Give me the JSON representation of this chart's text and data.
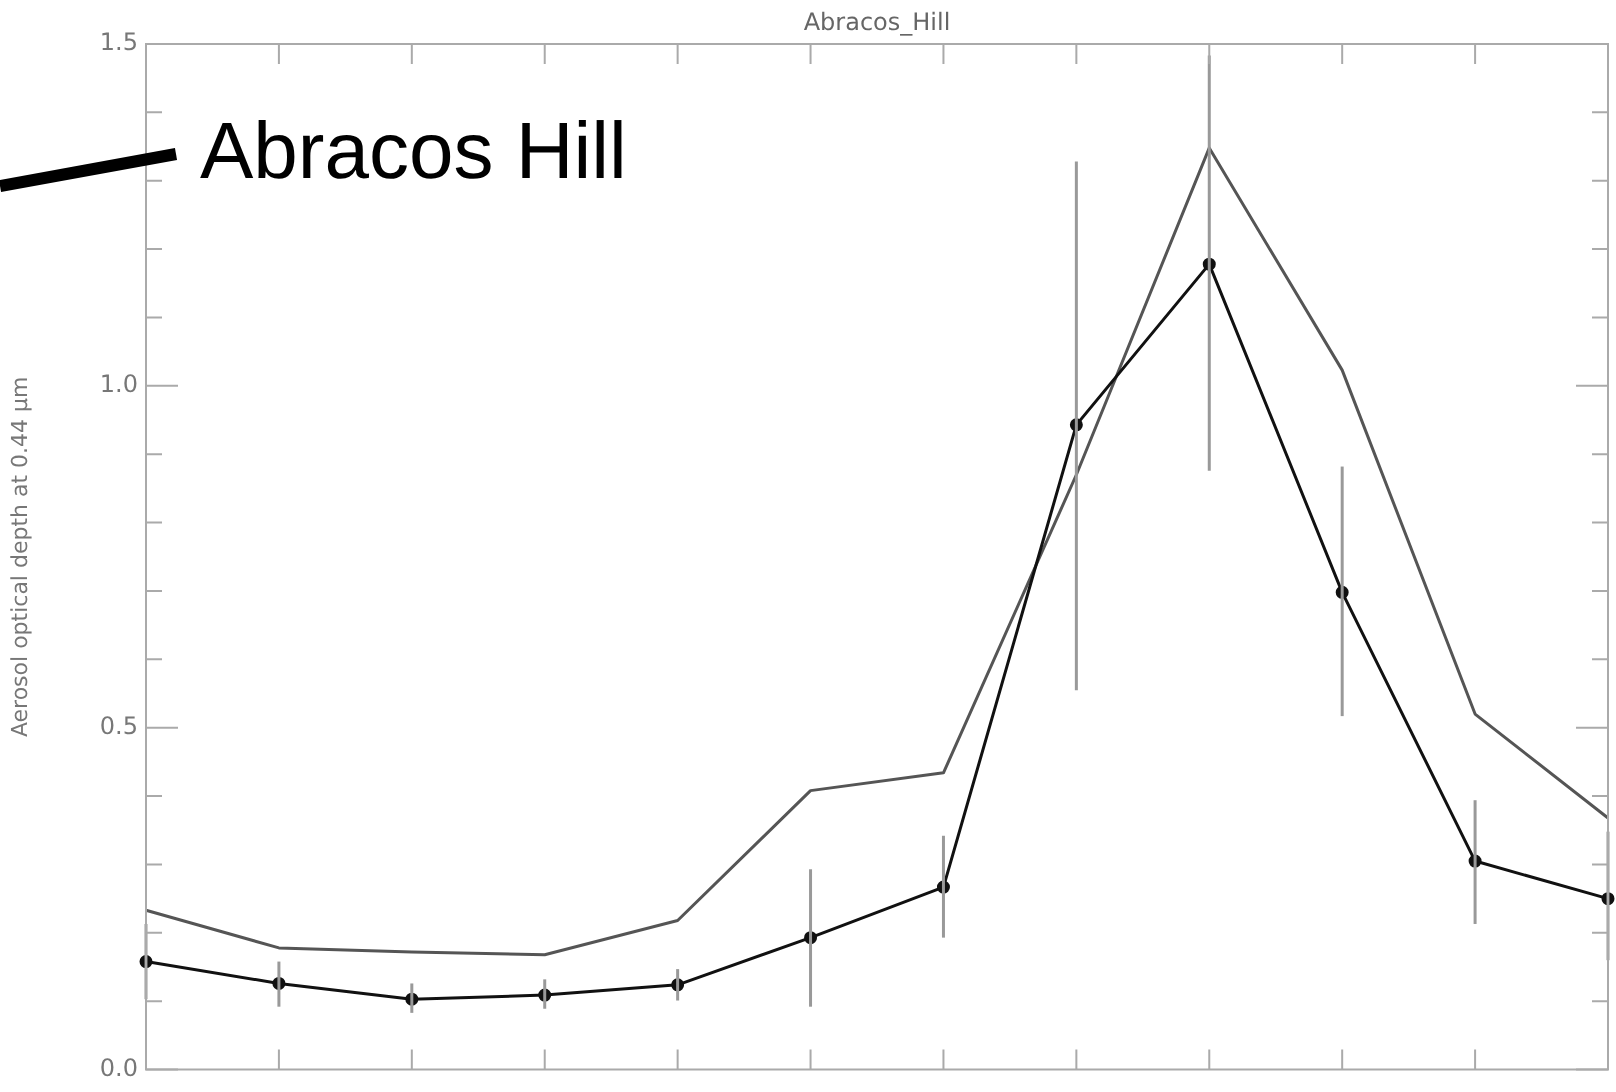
{
  "chart_data": {
    "type": "line",
    "title": "Abracos_Hill",
    "ylabel": "Aerosol optical depth at 0.44 μm",
    "annotations": [
      "Abracos Hill"
    ],
    "categories": [
      null,
      null,
      null,
      null,
      null,
      null,
      null,
      null,
      null,
      null,
      null,
      null
    ],
    "series": [
      {
        "color": "#111111",
        "marker": "circle",
        "values": [
          0.158,
          0.126,
          0.103,
          0.109,
          0.124,
          0.193,
          0.267,
          0.943,
          1.178,
          0.698,
          0.305,
          0.25
        ],
        "errors": [
          [
            0.103,
            0.213
          ],
          [
            0.092,
            0.158
          ],
          [
            0.083,
            0.126
          ],
          [
            0.089,
            0.132
          ],
          [
            0.101,
            0.147
          ],
          [
            0.092,
            0.293
          ],
          [
            0.193,
            0.342
          ],
          [
            0.555,
            1.328
          ],
          [
            0.876,
            1.483
          ],
          [
            0.517,
            0.882
          ],
          [
            0.213,
            0.394
          ],
          [
            0.16,
            0.348
          ]
        ]
      },
      {
        "color": "#555555",
        "marker": "none",
        "values": [
          0.233,
          0.178,
          0.172,
          0.168,
          0.218,
          0.408,
          0.434,
          0.87,
          1.348,
          1.023,
          0.52,
          0.368
        ]
      }
    ],
    "ylim": [
      0,
      1.5
    ],
    "yticks": [
      {
        "value": 0,
        "label": "0.0"
      },
      {
        "value": 0.1,
        "label": null
      },
      {
        "value": 0.2,
        "label": null
      },
      {
        "value": 0.3,
        "label": null
      },
      {
        "value": 0.4,
        "label": null
      },
      {
        "value": 0.5,
        "label": "0.5"
      },
      {
        "value": 0.6,
        "label": null
      },
      {
        "value": 0.7,
        "label": null
      },
      {
        "value": 0.8,
        "label": null
      },
      {
        "value": 0.9,
        "label": null
      },
      {
        "value": 1,
        "label": "1.0"
      },
      {
        "value": 1.1,
        "label": null
      },
      {
        "value": 1.2,
        "label": null
      },
      {
        "value": 1.3,
        "label": null
      },
      {
        "value": 1.4,
        "label": null
      },
      {
        "value": 1.5,
        "label": "1.5"
      }
    ],
    "grid": false,
    "legend": false,
    "tick_labels": "y",
    "line_style": "solid"
  }
}
